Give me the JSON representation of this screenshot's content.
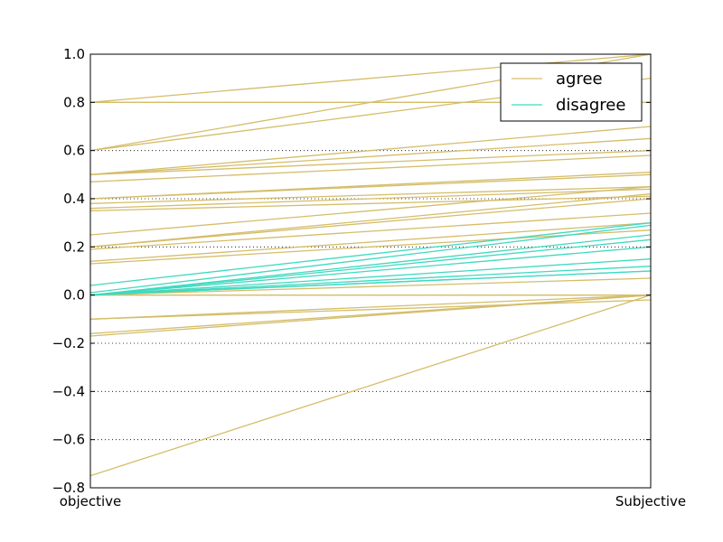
{
  "chart_data": {
    "type": "line",
    "x": [
      "objective",
      "Subjective"
    ],
    "ylim": [
      -0.8,
      1.0
    ],
    "yticks": [
      "1.0",
      "0.8",
      "0.6",
      "0.4",
      "0.2",
      "0.0",
      "−0.2",
      "−0.4",
      "−0.6",
      "−0.8"
    ],
    "grid": "horizontal dotted",
    "legend_position": "top-right",
    "colors": {
      "agree": "#d4bd6a",
      "disagree": "#3fd9c0"
    },
    "series": [
      {
        "name": "agree",
        "lines": [
          [
            0.8,
            1.0
          ],
          [
            0.8,
            0.8
          ],
          [
            0.6,
            1.0
          ],
          [
            0.6,
            0.9
          ],
          [
            0.5,
            0.7
          ],
          [
            0.5,
            0.65
          ],
          [
            0.5,
            0.6
          ],
          [
            0.47,
            0.58
          ],
          [
            0.4,
            0.51
          ],
          [
            0.4,
            0.5
          ],
          [
            0.38,
            0.45
          ],
          [
            0.36,
            0.44
          ],
          [
            0.35,
            0.41
          ],
          [
            0.25,
            0.45
          ],
          [
            0.2,
            0.42
          ],
          [
            0.2,
            0.4
          ],
          [
            0.19,
            0.34
          ],
          [
            0.14,
            0.3
          ],
          [
            0.13,
            0.27
          ],
          [
            0.0,
            0.07
          ],
          [
            0.0,
            0.0
          ],
          [
            -0.1,
            0.0
          ],
          [
            -0.1,
            -0.02
          ],
          [
            -0.16,
            0.0
          ],
          [
            -0.17,
            0.0
          ],
          [
            -0.75,
            0.0
          ]
        ]
      },
      {
        "name": "disagree",
        "lines": [
          [
            0.04,
            0.3
          ],
          [
            0.01,
            0.29
          ],
          [
            0.0,
            0.25
          ],
          [
            0.0,
            0.23
          ],
          [
            0.0,
            0.2
          ],
          [
            0.0,
            0.15
          ],
          [
            0.0,
            0.12
          ],
          [
            0.0,
            0.1
          ],
          [
            0.0,
            0.1
          ]
        ]
      }
    ]
  }
}
